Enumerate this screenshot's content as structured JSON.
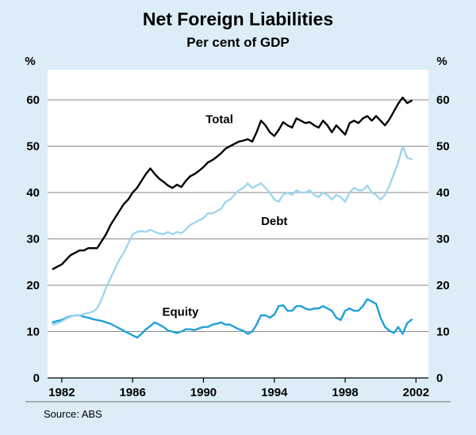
{
  "title": "Net Foreign Liabilities",
  "subtitle": "Per cent of GDP",
  "source_note": "Source: ABS",
  "axis_units": {
    "left": "%",
    "right": "%"
  },
  "colors": {
    "background": "#dcedf7",
    "plot_background": "#ffffff",
    "grid": "#8a8a8a",
    "axis": "#000000"
  },
  "chart_data": {
    "type": "line",
    "title": "Net Foreign Liabilities",
    "subtitle": "Per cent of GDP",
    "xlabel": "",
    "ylabel": "Per cent of GDP (%)",
    "xlim": [
      1981.2,
      2002.7
    ],
    "ylim": [
      0,
      66.5
    ],
    "xticks": [
      1982,
      1986,
      1990,
      1994,
      1998,
      2002
    ],
    "yticks": [
      0,
      10,
      20,
      30,
      40,
      50,
      60
    ],
    "grid": true,
    "legend_position": "inline-labels",
    "x": [
      1981.5,
      1981.75,
      1982,
      1982.25,
      1982.5,
      1982.75,
      1983,
      1983.25,
      1983.5,
      1983.75,
      1984,
      1984.25,
      1984.5,
      1984.75,
      1985,
      1985.25,
      1985.5,
      1985.75,
      1986,
      1986.25,
      1986.5,
      1986.75,
      1987,
      1987.25,
      1987.5,
      1987.75,
      1988,
      1988.25,
      1988.5,
      1988.75,
      1989,
      1989.25,
      1989.5,
      1989.75,
      1990,
      1990.25,
      1990.5,
      1990.75,
      1991,
      1991.25,
      1991.5,
      1991.75,
      1992,
      1992.25,
      1992.5,
      1992.75,
      1993,
      1993.25,
      1993.5,
      1993.75,
      1994,
      1994.25,
      1994.5,
      1994.75,
      1995,
      1995.25,
      1995.5,
      1995.75,
      1996,
      1996.25,
      1996.5,
      1996.75,
      1997,
      1997.25,
      1997.5,
      1997.75,
      1998,
      1998.25,
      1998.5,
      1998.75,
      1999,
      1999.25,
      1999.5,
      1999.75,
      2000,
      2000.25,
      2000.5,
      2000.75,
      2001,
      2001.25,
      2001.5,
      2001.75
    ],
    "series": [
      {
        "name": "Total",
        "color": "#000000",
        "values": [
          23.5,
          24,
          24.5,
          25.5,
          26.5,
          27,
          27.5,
          27.5,
          28,
          28,
          28,
          29.5,
          31,
          33,
          34.5,
          36,
          37.5,
          38.5,
          40,
          41,
          42.5,
          44,
          45.2,
          44,
          43,
          42.3,
          41.5,
          41,
          41.7,
          41.2,
          42.5,
          43.5,
          44,
          44.7,
          45.5,
          46.5,
          47,
          47.7,
          48.5,
          49.5,
          50,
          50.5,
          51,
          51.2,
          51.5,
          51,
          53,
          55.5,
          54.5,
          53,
          52.2,
          53.5,
          55.2,
          54.5,
          54,
          56,
          55.5,
          55,
          55.2,
          54.5,
          54,
          55.5,
          54.5,
          53,
          54.5,
          53.5,
          52.5,
          55,
          55.5,
          55,
          56,
          56.5,
          55.5,
          56.5,
          55.5,
          54.5,
          55.8,
          57.5,
          59.2,
          60.5,
          59.3,
          59.8
        ]
      },
      {
        "name": "Debt",
        "color": "#9fd6ef",
        "values": [
          11.5,
          11.8,
          12.2,
          12.8,
          13.2,
          13.5,
          13.5,
          13.8,
          14,
          14.3,
          15,
          17,
          19.5,
          21.5,
          23.5,
          25.5,
          27,
          29,
          31,
          31.5,
          31.7,
          31.5,
          32,
          31.5,
          31.2,
          31,
          31.5,
          31,
          31.5,
          31.2,
          32,
          33,
          33.5,
          34,
          34.5,
          35.5,
          35.5,
          36,
          36.5,
          38,
          38.5,
          39.5,
          40.5,
          41,
          42,
          41,
          41.5,
          42,
          41,
          40,
          38.5,
          38,
          39.5,
          40,
          39.5,
          40.5,
          40,
          40,
          40.5,
          39.5,
          39,
          40,
          39.5,
          38.5,
          39.5,
          39,
          38,
          40,
          41,
          40.5,
          40.5,
          41.5,
          40,
          39.5,
          38.5,
          39.5,
          41.5,
          44,
          46.5,
          50,
          47.5,
          47.2
        ]
      },
      {
        "name": "Equity",
        "color": "#1f9fd9",
        "values": [
          12,
          12.3,
          12.5,
          13,
          13.3,
          13.5,
          13.5,
          13.2,
          13,
          12.7,
          12.5,
          12.3,
          12,
          11.7,
          11.2,
          10.7,
          10.2,
          9.7,
          9.2,
          8.7,
          9.5,
          10.5,
          11.2,
          12,
          11.5,
          11,
          10.2,
          10,
          9.7,
          10,
          10.5,
          10.5,
          10.3,
          10.7,
          11,
          11,
          11.5,
          11.7,
          12,
          11.5,
          11.5,
          11,
          10.5,
          10.2,
          9.5,
          10,
          11.5,
          13.5,
          13.5,
          13,
          13.7,
          15.5,
          15.7,
          14.5,
          14.5,
          15.5,
          15.5,
          15,
          14.7,
          15,
          15,
          15.5,
          15,
          14.5,
          13,
          12.5,
          14.5,
          15,
          14.5,
          14.5,
          15.5,
          17,
          16.5,
          16,
          13,
          11,
          10.2,
          9.7,
          11,
          9.5,
          11.8,
          12.6
        ]
      }
    ],
    "annotations": [
      {
        "text": "Total",
        "x": 1990.9,
        "y": 55.0
      },
      {
        "text": "Debt",
        "x": 1994.0,
        "y": 33.0
      },
      {
        "text": "Equity",
        "x": 1988.7,
        "y": 13.4
      }
    ]
  }
}
